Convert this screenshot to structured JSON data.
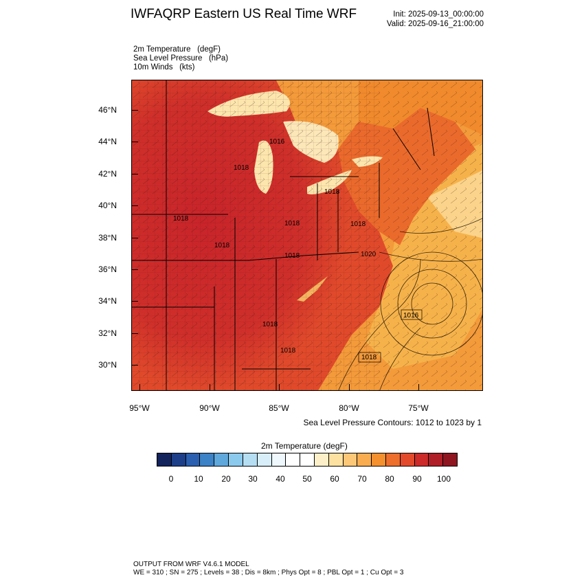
{
  "header": {
    "title": "IWFAQRP Eastern US Real Time WRF",
    "init": "Init: 2025-09-13_00:00:00",
    "valid": "Valid: 2025-09-16_21:00:00"
  },
  "fields": [
    "2m Temperature   (degF)",
    "Sea Level Pressure   (hPa)",
    "10m Winds   (kts)"
  ],
  "map": {
    "lat_labels": [
      "46°N",
      "44°N",
      "42°N",
      "40°N",
      "38°N",
      "36°N",
      "34°N",
      "32°N",
      "30°N"
    ],
    "lon_labels": [
      "95°W",
      "90°W",
      "85°W",
      "80°W",
      "75°W"
    ],
    "pressure_labels": [
      "1016",
      "1018",
      "1018",
      "1018",
      "1018",
      "1018",
      "1018",
      "1020",
      "1016",
      "1018",
      "1018",
      "1018",
      "1018"
    ],
    "colors": {
      "hot": "#c8242a",
      "warm": "#e8532a",
      "orange": "#f08a2c",
      "light_orange": "#f6b24a",
      "pale": "#fde6ae",
      "water_cool": "#fff4dc"
    }
  },
  "contour_note": "Sea Level Pressure Contours: 1012 to 1023 by 1",
  "legend": {
    "title": "2m Temperature  (degF)",
    "labels": [
      "0",
      "10",
      "20",
      "30",
      "40",
      "50",
      "60",
      "70",
      "80",
      "90",
      "100"
    ],
    "colors": [
      "#13235c",
      "#1d3f8a",
      "#2b5faf",
      "#3c82c6",
      "#5fa8dc",
      "#8ccaed",
      "#b5def3",
      "#d8eef9",
      "#eff8fd",
      "#ffffff",
      "#ffffff",
      "#fdf0c8",
      "#fde1a0",
      "#fcc878",
      "#f9ad50",
      "#f5902f",
      "#ee6e2c",
      "#e34a2b",
      "#cc2b2a",
      "#b01e27",
      "#8f1621"
    ]
  },
  "footer": {
    "line1": "OUTPUT FROM WRF V4.6.1 MODEL",
    "line2": "WE = 310 ; SN = 275 ; Levels = 38 ; Dis = 8km ; Phys Opt = 8 ; PBL Opt = 1 ; Cu Opt = 3"
  }
}
